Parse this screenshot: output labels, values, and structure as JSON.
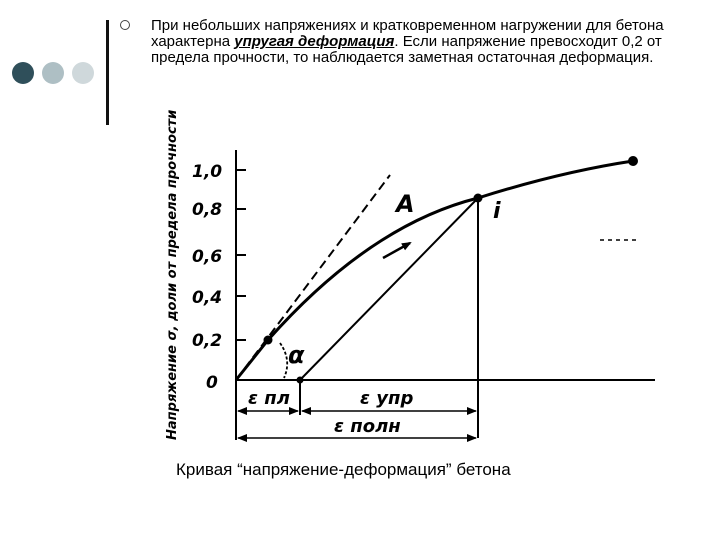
{
  "slide": {
    "dot_colors": [
      "#2f4f5a",
      "#aebfc4",
      "#cfd8db"
    ],
    "text": {
      "before": "При небольших напряжениях и кратковременном нагружении для бетона характерна ",
      "emphasis": "упругая деформация",
      "after": ". Если напряжение превосходит 0,2 от предела прочности, то наблюдается заметная остаточная деформация."
    },
    "caption": "Кривая “напряжение-деформация” бетона"
  },
  "diagram": {
    "y_axis_label": "Напряжение σ, доли от предела прочности",
    "y_ticks": [
      "1,0",
      "0,8",
      "0,6",
      "0,4",
      "0,2",
      "0"
    ],
    "point_A": "A",
    "point_i": "i",
    "angle_alpha": "α",
    "eps_pl": "ε пл",
    "eps_upr": "ε упр",
    "eps_poln": "ε полн"
  }
}
